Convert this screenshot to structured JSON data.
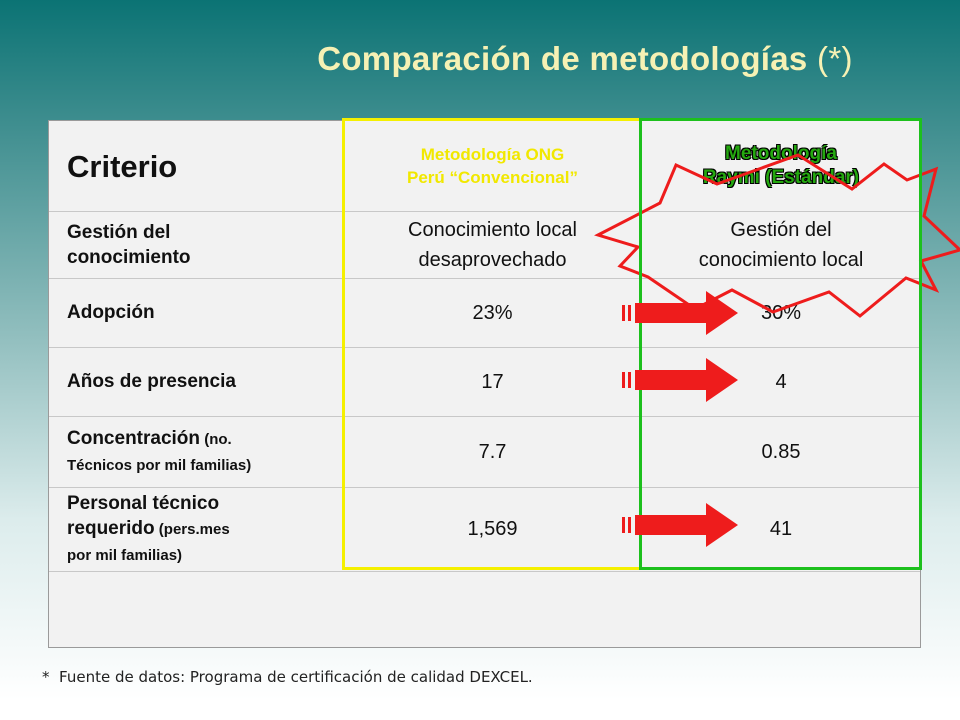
{
  "title": {
    "main": "Comparación de metodologías",
    "suffix": " (*)"
  },
  "table": {
    "header": {
      "criterio": "Criterio",
      "ong_line1": "Metodología ONG",
      "ong_line2": "Perú “Convencional”",
      "raymi_line1": "Metodología",
      "raymi_line2": "Raymi (Estándar)"
    },
    "rows": [
      {
        "criterio_line1": "Gestión del",
        "criterio_line2": "conocimiento",
        "ong_line1": "Conocimiento local",
        "ong_line2": "desaprovechado",
        "raymi_line1": "Gestión del",
        "raymi_line2": "conocimiento local"
      },
      {
        "criterio": "Adopción",
        "ong": "23%",
        "raymi": "30%"
      },
      {
        "criterio": "Años de presencia",
        "ong": "17",
        "raymi": "4"
      },
      {
        "criterio_main": "Concentración",
        "criterio_note1": " (no.",
        "criterio_note2": "Técnicos por mil familias)",
        "ong": "7.7",
        "raymi": "0.85"
      },
      {
        "criterio_line1": "Personal técnico",
        "criterio_main": "requerido",
        "criterio_note1": " (pers.mes",
        "criterio_note2": "por mil familias)",
        "ong": "1,569",
        "raymi": "41"
      }
    ]
  },
  "colors": {
    "yellow_box": "#f5f000",
    "green_box": "#1dc01d",
    "arrow": "#ee1c1c",
    "title": "#f6f1b4"
  },
  "footnote": {
    "marker": "*",
    "text": "Fuente de datos: Programa de certificación de calidad DEXCEL."
  }
}
